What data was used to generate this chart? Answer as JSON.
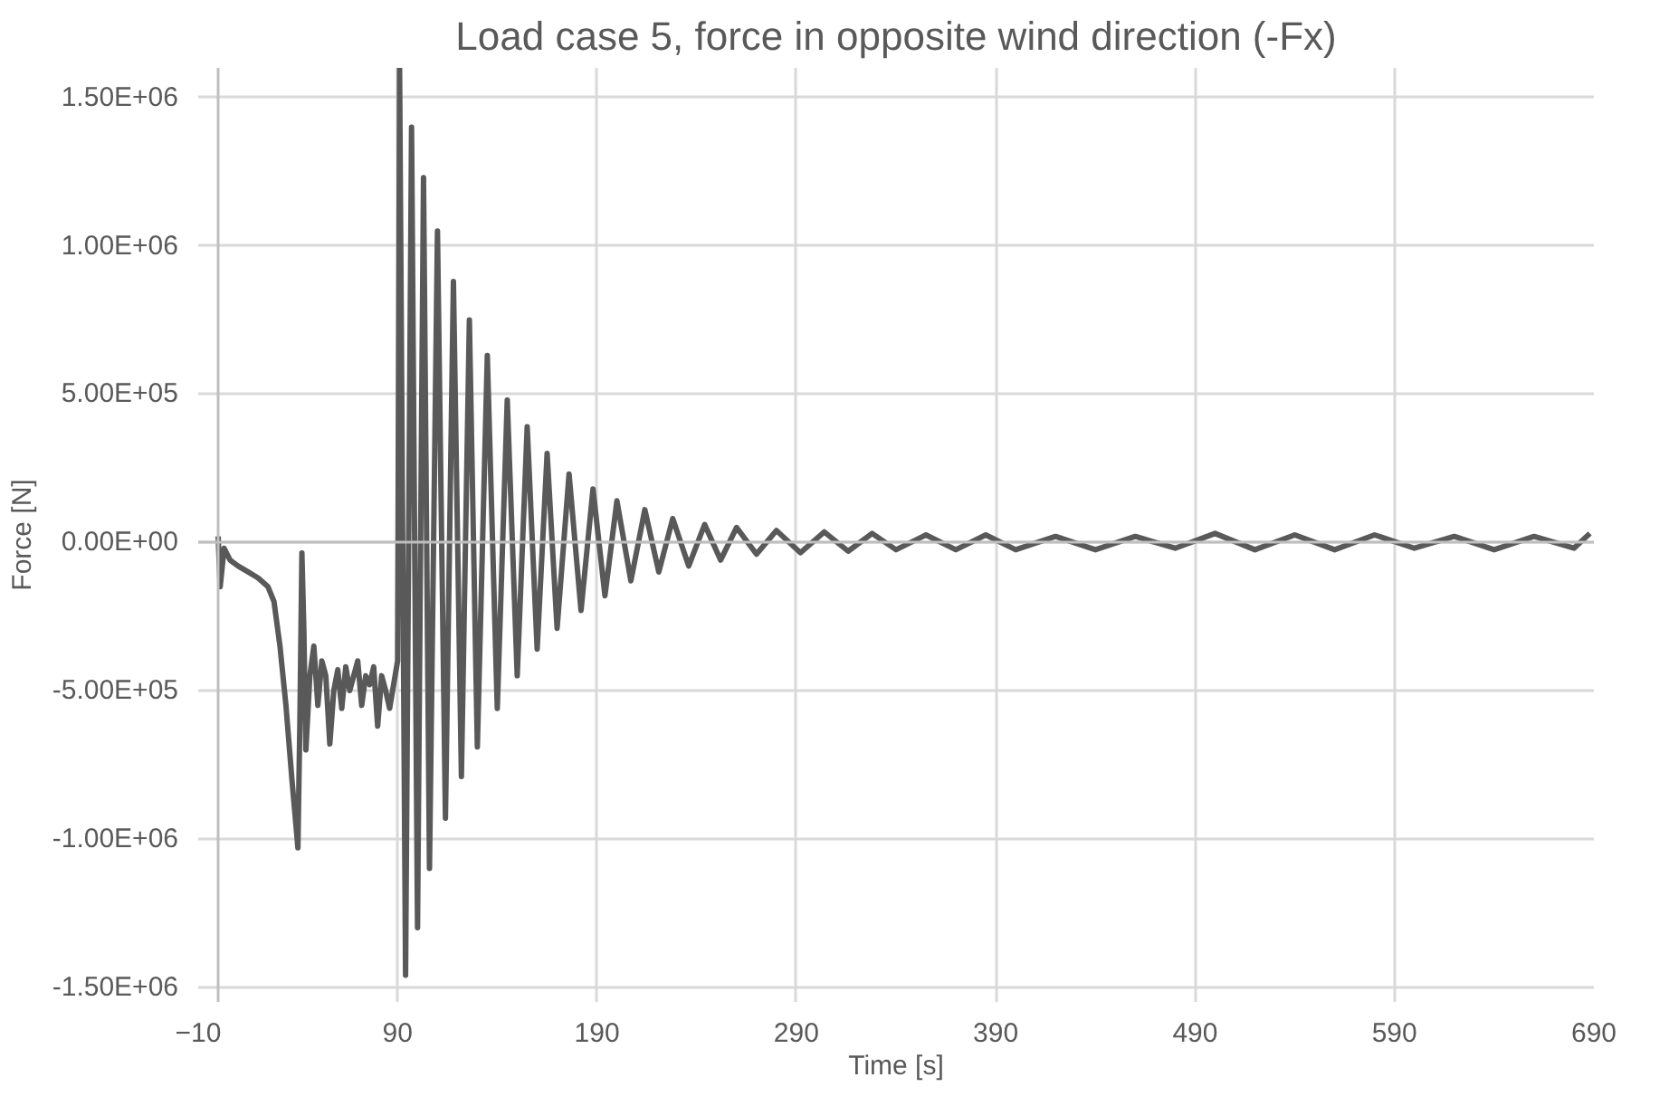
{
  "chart_data": {
    "type": "line",
    "title": "Load case 5, force in opposite wind direction (-Fx)",
    "xlabel": "Time [s]",
    "ylabel": "Force [N]",
    "x": [
      0,
      1,
      3,
      6,
      10,
      15,
      20,
      25,
      28,
      31,
      34,
      37,
      40,
      41,
      42,
      43,
      44,
      46,
      48,
      50,
      52,
      54,
      56,
      58,
      60,
      62,
      64,
      66,
      68,
      70,
      72,
      74,
      76,
      78,
      80,
      82,
      84,
      86,
      88,
      90,
      91,
      94,
      97,
      100,
      103,
      106,
      110,
      114,
      118,
      122,
      126,
      130,
      135,
      140,
      145,
      150,
      155,
      160,
      165,
      170,
      176,
      182,
      188,
      194,
      200,
      207,
      214,
      221,
      228,
      236,
      244,
      252,
      260,
      270,
      280,
      292,
      304,
      316,
      328,
      340,
      355,
      370,
      385,
      400,
      420,
      440,
      460,
      480,
      500,
      520,
      540,
      560,
      580,
      600,
      620,
      640,
      660,
      680,
      688
    ],
    "series": [
      {
        "color": "#595959",
        "values": [
          20000,
          -150000,
          -20000,
          -60000,
          -80000,
          -100000,
          -120000,
          -150000,
          -200000,
          -350000,
          -550000,
          -800000,
          -1030000,
          -600000,
          -36000,
          -300000,
          -700000,
          -450000,
          -350000,
          -550000,
          -400000,
          -450000,
          -680000,
          -500000,
          -430000,
          -560000,
          -420000,
          -500000,
          -450000,
          -400000,
          -550000,
          -450000,
          -480000,
          -420000,
          -620000,
          -450000,
          -500000,
          -560000,
          -480000,
          -400000,
          1600000,
          -1460000,
          1400000,
          -1300000,
          1230000,
          -1100000,
          1050000,
          -930000,
          880000,
          -790000,
          750000,
          -690000,
          630000,
          -560000,
          480000,
          -450000,
          390000,
          -360000,
          300000,
          -290000,
          230000,
          -230000,
          180000,
          -180000,
          140000,
          -130000,
          110000,
          -100000,
          80000,
          -80000,
          60000,
          -60000,
          50000,
          -40000,
          40000,
          -35000,
          35000,
          -30000,
          30000,
          -25000,
          25000,
          -25000,
          25000,
          -25000,
          20000,
          -25000,
          20000,
          -20000,
          30000,
          -25000,
          25000,
          -25000,
          25000,
          -20000,
          20000,
          -25000,
          20000,
          -20000,
          30000
        ]
      }
    ],
    "xlim": [
      -10,
      690
    ],
    "xticks": [
      -10,
      90,
      190,
      290,
      390,
      490,
      590,
      690
    ],
    "ylim": [
      -1550000,
      1600000
    ],
    "yticks": [
      {
        "value": -1500000,
        "label": "-1.50E+06"
      },
      {
        "value": -1000000,
        "label": "-1.00E+06"
      },
      {
        "value": -500000,
        "label": "-5.00E+05"
      },
      {
        "value": 0,
        "label": "0.00E+00"
      },
      {
        "value": 500000,
        "label": "5.00E+05"
      },
      {
        "value": 1000000,
        "label": "1.00E+06"
      },
      {
        "value": 1500000,
        "label": "1.50E+06"
      }
    ],
    "grid": true,
    "marker": "none",
    "line_style": "solid"
  }
}
